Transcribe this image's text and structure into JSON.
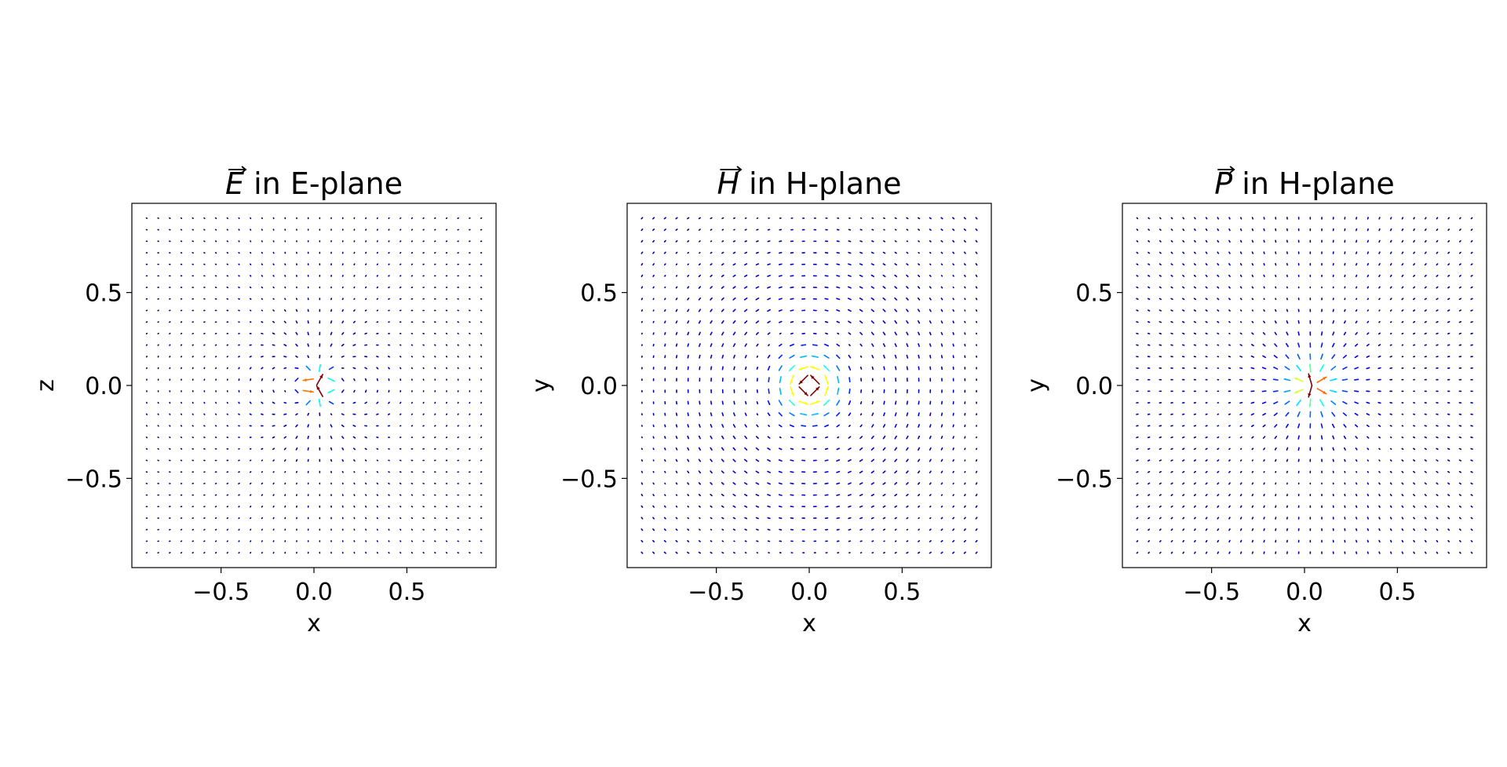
{
  "figure": {
    "background": "#ffffff"
  },
  "chart_data": [
    {
      "type": "quiver",
      "title_symbol": "E",
      "title_rest": " in E-plane",
      "xlabel": "x",
      "ylabel": "z",
      "xlim": [
        -0.98,
        0.98
      ],
      "ylim": [
        -0.98,
        0.98
      ],
      "xticks": [
        -0.5,
        0.0,
        0.5
      ],
      "xtick_labels": [
        "−0.5",
        "0.0",
        "0.5"
      ],
      "yticks": [
        -0.5,
        0.0,
        0.5
      ],
      "ytick_labels": [
        "−0.5",
        "0.0",
        "0.5"
      ],
      "grid": false,
      "legend": "none",
      "colormap": "jet",
      "field": "dipole_e_plane",
      "grid_extent": [
        -0.9,
        0.9
      ],
      "grid_points": 30
    },
    {
      "type": "quiver",
      "title_symbol": "H",
      "title_rest": " in H-plane",
      "xlabel": "x",
      "ylabel": "y",
      "xlim": [
        -0.98,
        0.98
      ],
      "ylim": [
        -0.98,
        0.98
      ],
      "xticks": [
        -0.5,
        0.0,
        0.5
      ],
      "xtick_labels": [
        "−0.5",
        "0.0",
        "0.5"
      ],
      "yticks": [
        -0.5,
        0.0,
        0.5
      ],
      "ytick_labels": [
        "−0.5",
        "0.0",
        "0.5"
      ],
      "grid": false,
      "legend": "none",
      "colormap": "jet",
      "field": "circulating_h_plane",
      "grid_extent": [
        -0.9,
        0.9
      ],
      "grid_points": 30
    },
    {
      "type": "quiver",
      "title_symbol": "P",
      "title_rest": " in H-plane",
      "xlabel": "x",
      "ylabel": "y",
      "xlim": [
        -0.98,
        0.98
      ],
      "ylim": [
        -0.98,
        0.98
      ],
      "xticks": [
        -0.5,
        0.0,
        0.5
      ],
      "xtick_labels": [
        "−0.5",
        "0.0",
        "0.5"
      ],
      "yticks": [
        -0.5,
        0.0,
        0.5
      ],
      "ytick_labels": [
        "−0.5",
        "0.0",
        "0.5"
      ],
      "grid": false,
      "legend": "none",
      "colormap": "jet",
      "field": "radial_poynting_h_plane",
      "grid_extent": [
        -0.9,
        0.9
      ],
      "grid_points": 30
    }
  ]
}
